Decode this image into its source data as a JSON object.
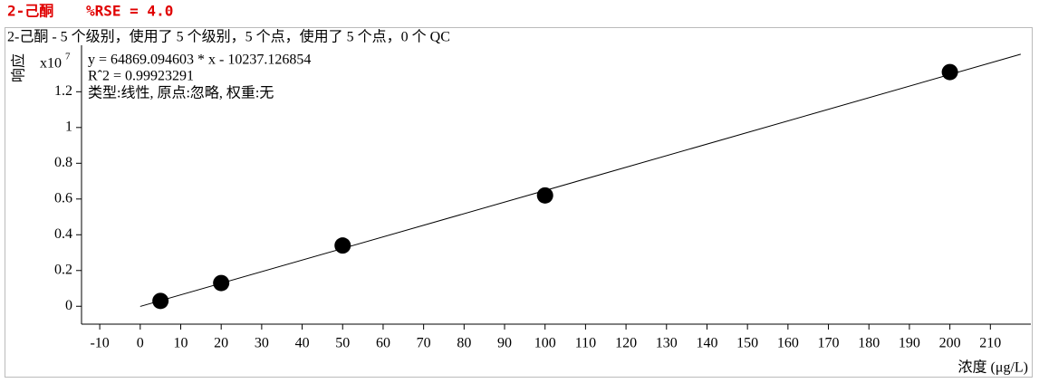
{
  "chart_data": {
    "type": "scatter",
    "title": "2-己酮",
    "rse": "%RSE = 4.0",
    "subtitle": "2-己酮 - 5 个级别，使用了 5 个级别，5 个点，使用了 5 个点，0 个 QC",
    "annotations": [
      "y = 64869.094603 * x  - 10237.126854",
      "Rˆ2 = 0.99923291",
      "类型:线性, 原点:忽略, 权重:无"
    ],
    "y_label": "响应",
    "y_multiplier": "x10",
    "y_exponent": "7",
    "x_label": "浓度 (μg/L)",
    "x": [
      5,
      20,
      50,
      100,
      200
    ],
    "values": [
      0.03,
      0.13,
      0.34,
      0.62,
      1.31
    ],
    "color": "#000000",
    "fit_line": {
      "x": [
        0,
        217.5
      ],
      "values": [
        -0.001,
        1.41
      ]
    },
    "xlim": [
      -14.5,
      220
    ],
    "ylim": [
      -0.1,
      1.46
    ],
    "xticks": [
      -10,
      0,
      10,
      20,
      30,
      40,
      50,
      60,
      70,
      80,
      90,
      100,
      110,
      120,
      130,
      140,
      150,
      160,
      170,
      180,
      190,
      200,
      210
    ],
    "yticks": [
      0,
      0.2,
      0.4,
      0.6,
      0.8,
      1,
      1.2
    ]
  }
}
